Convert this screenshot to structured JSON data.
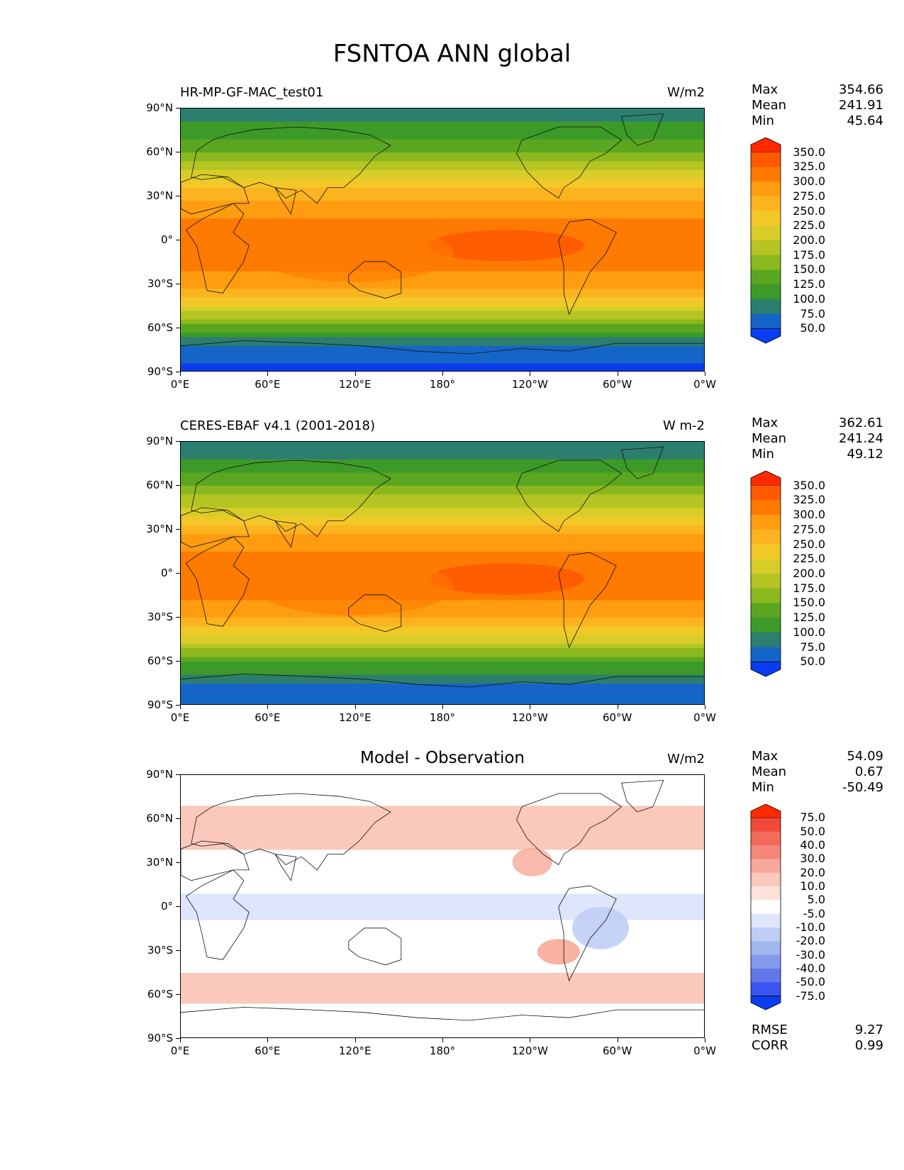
{
  "title": "FSNTOA ANN global",
  "axes": {
    "lat_ticks": [
      "90°N",
      "60°N",
      "30°N",
      "0°",
      "30°S",
      "60°S",
      "90°S"
    ],
    "lon_ticks": [
      "0°E",
      "60°E",
      "120°E",
      "180°",
      "120°W",
      "60°W",
      "0°W"
    ]
  },
  "panels": [
    {
      "label": "HR-MP-GF-MAC_test01",
      "title": "",
      "units": "W/m2",
      "stats": {
        "max_label": "Max",
        "max": "354.66",
        "mean_label": "Mean",
        "mean": "241.91",
        "min_label": "Min",
        "min": "45.64"
      },
      "colorbar": {
        "labels": [
          "350.0",
          "325.0",
          "300.0",
          "275.0",
          "250.0",
          "225.0",
          "200.0",
          "175.0",
          "150.0",
          "125.0",
          "100.0",
          "75.0",
          "50.0"
        ],
        "colors": [
          "#ff2a00",
          "#ff5a00",
          "#ff7a00",
          "#ff9c10",
          "#fbb420",
          "#f2c828",
          "#d8cd28",
          "#b5c422",
          "#8ab81e",
          "#5aa620",
          "#3c9a28",
          "#2c7e6e",
          "#1565c8",
          "#0a3cf0"
        ]
      }
    },
    {
      "label": "CERES-EBAF v4.1 (2001-2018)",
      "title": "",
      "units": "W m-2",
      "stats": {
        "max_label": "Max",
        "max": "362.61",
        "mean_label": "Mean",
        "mean": "241.24",
        "min_label": "Min",
        "min": "49.12"
      },
      "colorbar": {
        "labels": [
          "350.0",
          "325.0",
          "300.0",
          "275.0",
          "250.0",
          "225.0",
          "200.0",
          "175.0",
          "150.0",
          "125.0",
          "100.0",
          "75.0",
          "50.0"
        ],
        "colors": [
          "#ff2a00",
          "#ff5a00",
          "#ff7a00",
          "#ff9c10",
          "#fbb420",
          "#f2c828",
          "#d8cd28",
          "#b5c422",
          "#8ab81e",
          "#5aa620",
          "#3c9a28",
          "#2c7e6e",
          "#1565c8",
          "#0a3cf0"
        ]
      }
    },
    {
      "label": "",
      "title": "Model - Observation",
      "units": "W/m2",
      "stats": {
        "max_label": "Max",
        "max": "54.09",
        "mean_label": "Mean",
        "mean": "0.67",
        "min_label": "Min",
        "min": "-50.49"
      },
      "extra_stats": {
        "rmse_label": "RMSE",
        "rmse": "9.27",
        "corr_label": "CORR",
        "corr": "0.99"
      },
      "colorbar": {
        "labels": [
          "75.0",
          "50.0",
          "40.0",
          "30.0",
          "20.0",
          "10.0",
          "5.0",
          "-5.0",
          "-10.0",
          "-20.0",
          "-30.0",
          "-40.0",
          "-50.0",
          "-75.0"
        ],
        "colors": [
          "#ff2a00",
          "#ee4a3a",
          "#f26a5a",
          "#f58878",
          "#f8a898",
          "#fbc8bc",
          "#fde2dc",
          "#ffffff",
          "#dde6fb",
          "#c0cef6",
          "#a2b6f0",
          "#8299ec",
          "#6078ea",
          "#3a55f0",
          "#0a3cf0"
        ]
      }
    }
  ],
  "chart_data": [
    {
      "type": "heatmap",
      "title": "HR-MP-GF-MAC_test01",
      "units": "W/m2",
      "x_ticks": [
        "0°E",
        "60°E",
        "120°E",
        "180°",
        "120°W",
        "60°W",
        "0°W"
      ],
      "y_ticks": [
        "90°N",
        "60°N",
        "30°N",
        "0°",
        "30°S",
        "60°S",
        "90°S"
      ],
      "levels": [
        50,
        75,
        100,
        125,
        150,
        175,
        200,
        225,
        250,
        275,
        300,
        325,
        350
      ],
      "stats": {
        "max": 354.66,
        "mean": 241.91,
        "min": 45.64
      },
      "zonal_mean_profile": {
        "lat": [
          90,
          75,
          60,
          45,
          30,
          15,
          0,
          -15,
          -30,
          -45,
          -60,
          -75,
          -90
        ],
        "value": [
          80,
          110,
          150,
          210,
          270,
          300,
          310,
          310,
          285,
          220,
          135,
          60,
          45
        ]
      }
    },
    {
      "type": "heatmap",
      "title": "CERES-EBAF v4.1 (2001-2018)",
      "units": "W m-2",
      "x_ticks": [
        "0°E",
        "60°E",
        "120°E",
        "180°",
        "120°W",
        "60°W",
        "0°W"
      ],
      "y_ticks": [
        "90°N",
        "60°N",
        "30°N",
        "0°",
        "30°S",
        "60°S",
        "90°S"
      ],
      "levels": [
        50,
        75,
        100,
        125,
        150,
        175,
        200,
        225,
        250,
        275,
        300,
        325,
        350
      ],
      "stats": {
        "max": 362.61,
        "mean": 241.24,
        "min": 49.12
      },
      "zonal_mean_profile": {
        "lat": [
          90,
          75,
          60,
          45,
          30,
          15,
          0,
          -15,
          -30,
          -45,
          -60,
          -75,
          -90
        ],
        "value": [
          75,
          105,
          145,
          205,
          265,
          300,
          315,
          305,
          280,
          215,
          130,
          70,
          60
        ]
      }
    },
    {
      "type": "heatmap",
      "title": "Model - Observation",
      "units": "W/m2",
      "x_ticks": [
        "0°E",
        "60°E",
        "120°E",
        "180°",
        "120°W",
        "60°W",
        "0°W"
      ],
      "y_ticks": [
        "90°N",
        "60°N",
        "30°N",
        "0°",
        "30°S",
        "60°S",
        "90°S"
      ],
      "levels": [
        -75,
        -50,
        -40,
        -30,
        -20,
        -10,
        -5,
        5,
        10,
        20,
        30,
        40,
        50,
        75
      ],
      "stats": {
        "max": 54.09,
        "mean": 0.67,
        "min": -50.49,
        "rmse": 9.27,
        "corr": 0.99
      }
    }
  ]
}
